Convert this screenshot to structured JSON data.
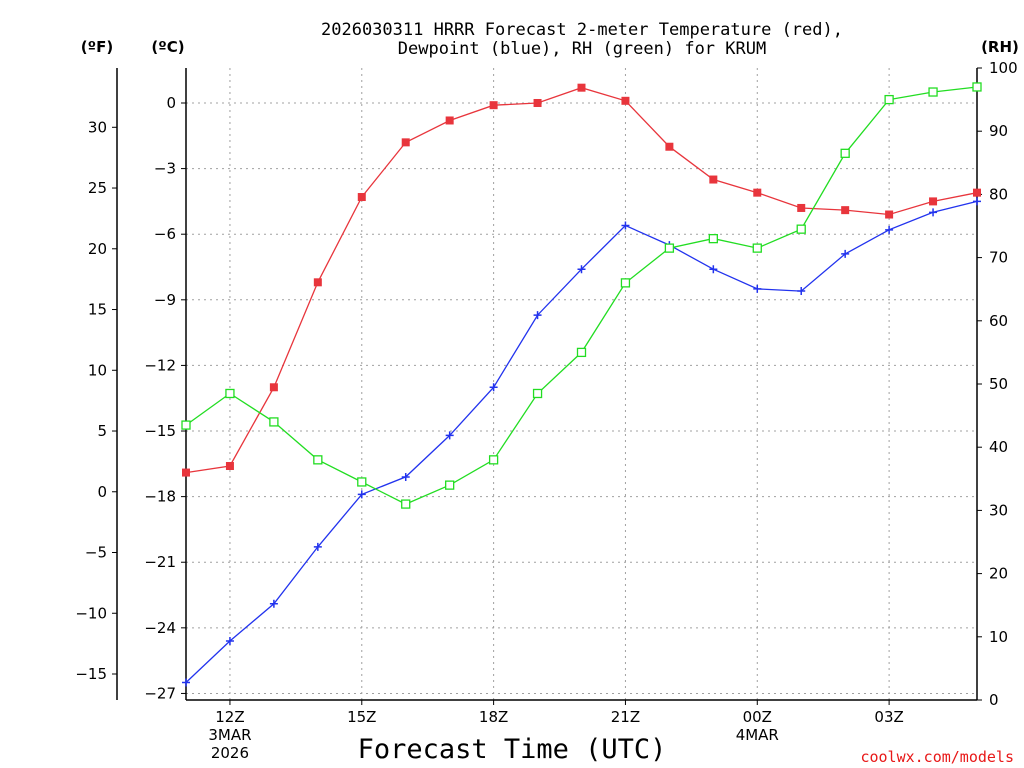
{
  "chart_data": {
    "type": "line",
    "title_line1": "2026030311 HRRR Forecast 2-meter Temperature (red),",
    "title_line2": "Dewpoint (blue), RH (green) for KRUM",
    "xlabel": "Forecast Time (UTC)",
    "credit": "coolwx.com/models",
    "units": {
      "fahrenheit": "(ºF)",
      "celsius": "(ºC)",
      "rh": "(RH)"
    },
    "x_ticks": [
      {
        "hour": 1,
        "line1": "12Z",
        "line2": "3MAR",
        "line3": "2026"
      },
      {
        "hour": 4,
        "line1": "15Z",
        "line2": "",
        "line3": ""
      },
      {
        "hour": 7,
        "line1": "18Z",
        "line2": "",
        "line3": ""
      },
      {
        "hour": 10,
        "line1": "21Z",
        "line2": "",
        "line3": ""
      },
      {
        "hour": 13,
        "line1": "00Z",
        "line2": "4MAR",
        "line3": ""
      },
      {
        "hour": 16,
        "line1": "03Z",
        "line2": "",
        "line3": ""
      }
    ],
    "celsius_ticks": [
      0,
      -3,
      -6,
      -9,
      -12,
      -15,
      -18,
      -21,
      -24,
      -27
    ],
    "celsius_labels": [
      "0",
      "−3",
      "−6",
      "−9",
      "−12",
      "−15",
      "−18",
      "−21",
      "−24",
      "−27"
    ],
    "fahrenheit_ticks": [
      30,
      25,
      20,
      15,
      10,
      5,
      0,
      -5,
      -10,
      -15
    ],
    "fahrenheit_labels": [
      "30",
      "25",
      "20",
      "15",
      "10",
      "5",
      "0",
      "−5",
      "−10",
      "−15"
    ],
    "rh_ticks": [
      100,
      90,
      80,
      70,
      60,
      50,
      40,
      30,
      20,
      10,
      0
    ],
    "rh_labels": [
      "100",
      "90",
      "80",
      "70",
      "60",
      "50",
      "40",
      "30",
      "20",
      "10",
      "0"
    ],
    "ylim_celsius": [
      -27.3,
      1.6
    ],
    "ylim_rh": [
      0,
      100
    ],
    "x_range_hours": [
      0,
      18
    ],
    "series": [
      {
        "name": "2-meter Temperature",
        "axis": "celsius",
        "color": "#e8353c",
        "marker": "filled-square",
        "values": [
          -16.9,
          -16.6,
          -13.0,
          -8.2,
          -4.3,
          -1.8,
          -0.8,
          -0.1,
          0.0,
          0.7,
          0.1,
          -2.0,
          -3.5,
          -4.1,
          -4.8,
          -4.9,
          -5.1,
          -4.5,
          -4.1
        ]
      },
      {
        "name": "Dewpoint",
        "axis": "celsius",
        "color": "#2233ee",
        "marker": "plus",
        "values": [
          -26.5,
          -24.6,
          -22.9,
          -20.3,
          -17.9,
          -17.1,
          -15.2,
          -13.0,
          -9.7,
          -7.6,
          -5.6,
          -6.5,
          -7.6,
          -8.5,
          -8.6,
          -6.9,
          -5.8,
          -5.0,
          -4.5
        ]
      },
      {
        "name": "RH",
        "axis": "rh",
        "color": "#22dd22",
        "marker": "open-square",
        "values": [
          43.5,
          48.5,
          44.0,
          38.0,
          34.5,
          31.0,
          34.0,
          38.0,
          48.5,
          55.0,
          66.0,
          71.5,
          73.0,
          71.5,
          74.5,
          86.5,
          95.0,
          96.2,
          97.0
        ]
      }
    ]
  }
}
